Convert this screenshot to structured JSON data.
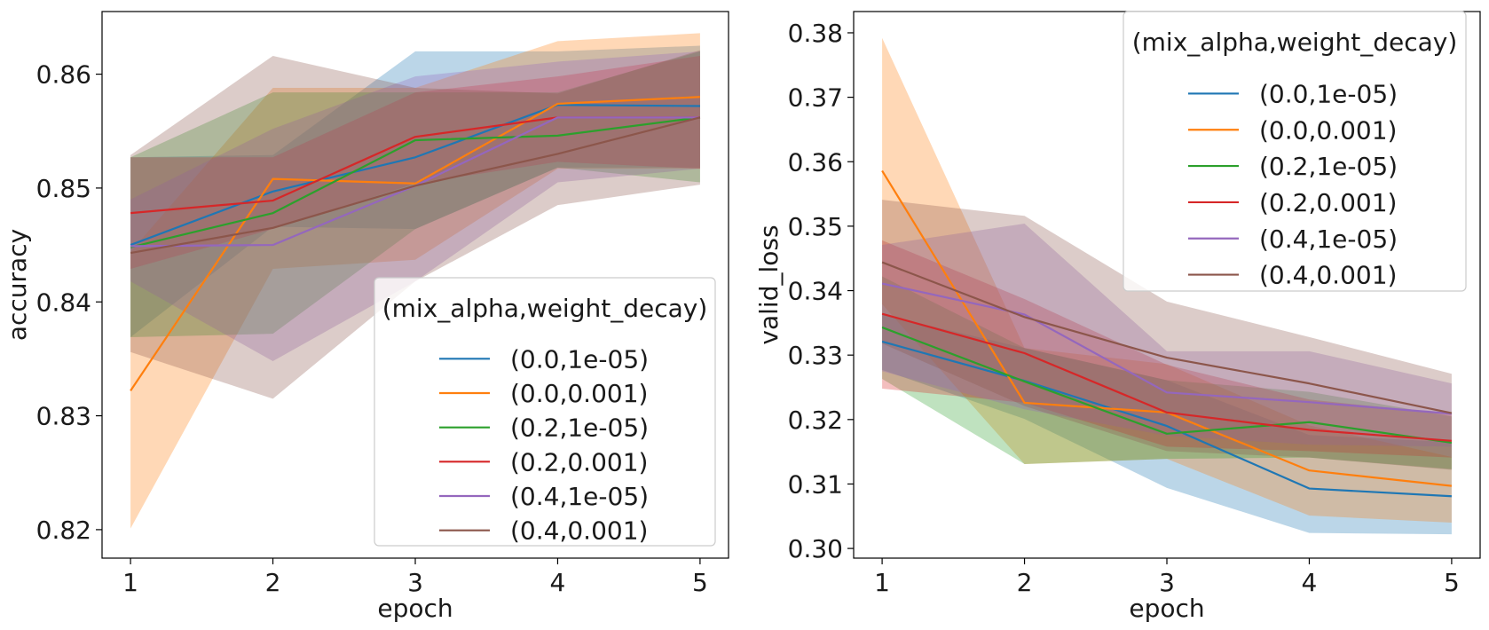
{
  "chart_data": [
    {
      "type": "line",
      "xlabel": "epoch",
      "ylabel": "accuracy",
      "x": [
        1,
        2,
        3,
        4,
        5
      ],
      "xticks": [
        1,
        2,
        3,
        4,
        5
      ],
      "xlim": [
        0.8,
        5.2
      ],
      "ylim": [
        0.8175,
        0.8655
      ],
      "yticks": [
        0.82,
        0.83,
        0.84,
        0.85,
        0.86
      ],
      "ytick_labels": [
        "0.82",
        "0.83",
        "0.84",
        "0.85",
        "0.86"
      ],
      "grid": false,
      "legend": {
        "title": "(mix_alpha,weight_decay)",
        "placement": "lower-right"
      },
      "series": [
        {
          "name": "(0.0,1e-05)",
          "color": "#1f77b4",
          "values": [
            0.845,
            0.8497,
            0.8527,
            0.8573,
            0.8572
          ],
          "lower": [
            0.8369,
            0.8466,
            0.8464,
            0.8518,
            0.8518
          ],
          "upper": [
            0.8527,
            0.8529,
            0.862,
            0.862,
            0.8625
          ]
        },
        {
          "name": "(0.0,0.001)",
          "color": "#ff7f0e",
          "values": [
            0.8322,
            0.8508,
            0.8504,
            0.8574,
            0.858
          ],
          "lower": [
            0.8201,
            0.8429,
            0.8437,
            0.8517,
            0.8517
          ],
          "upper": [
            0.8444,
            0.8588,
            0.8588,
            0.8629,
            0.8636
          ]
        },
        {
          "name": "(0.2,1e-05)",
          "color": "#2ca02c",
          "values": [
            0.8448,
            0.8478,
            0.8542,
            0.8546,
            0.8562
          ],
          "lower": [
            0.8369,
            0.8372,
            0.8464,
            0.8518,
            0.8505
          ],
          "upper": [
            0.8527,
            0.8584,
            0.8584,
            0.8584,
            0.862
          ]
        },
        {
          "name": "(0.2,0.001)",
          "color": "#d62728",
          "values": [
            0.8478,
            0.8489,
            0.8545,
            0.8562,
            0.8562
          ],
          "lower": [
            0.8429,
            0.8464,
            0.8504,
            0.8523,
            0.8517
          ],
          "upper": [
            0.8527,
            0.8527,
            0.8584,
            0.8598,
            0.8616
          ]
        },
        {
          "name": "(0.4,1e-05)",
          "color": "#9467bd",
          "values": [
            0.8449,
            0.845,
            0.8502,
            0.8562,
            0.8562
          ],
          "lower": [
            0.8418,
            0.8348,
            0.8418,
            0.8505,
            0.8517
          ],
          "upper": [
            0.849,
            0.8552,
            0.8598,
            0.8611,
            0.862
          ]
        },
        {
          "name": "(0.4,0.001)",
          "color": "#8c564b",
          "values": [
            0.8443,
            0.8465,
            0.8502,
            0.853,
            0.8562
          ],
          "lower": [
            0.8356,
            0.8315,
            0.8418,
            0.8485,
            0.8503
          ],
          "upper": [
            0.8529,
            0.8616,
            0.8588,
            0.8583,
            0.8621
          ]
        }
      ]
    },
    {
      "type": "line",
      "xlabel": "epoch",
      "ylabel": "valid_loss",
      "x": [
        1,
        2,
        3,
        4,
        5
      ],
      "xticks": [
        1,
        2,
        3,
        4,
        5
      ],
      "xlim": [
        0.8,
        5.2
      ],
      "ylim": [
        0.2985,
        0.3833
      ],
      "yticks": [
        0.3,
        0.31,
        0.32,
        0.33,
        0.34,
        0.35,
        0.36,
        0.37,
        0.38
      ],
      "ytick_labels": [
        "0.30",
        "0.31",
        "0.32",
        "0.33",
        "0.34",
        "0.35",
        "0.36",
        "0.37",
        "0.38"
      ],
      "grid": false,
      "legend": {
        "title": "(mix_alpha,weight_decay)",
        "placement": "upper-right"
      },
      "series": [
        {
          "name": "(0.0,1e-05)",
          "color": "#1f77b4",
          "values": [
            0.3321,
            0.326,
            0.319,
            0.3093,
            0.3081
          ],
          "lower": [
            0.3277,
            0.3201,
            0.3094,
            0.3024,
            0.3022
          ],
          "upper": [
            0.3363,
            0.3311,
            0.3261,
            0.3176,
            0.3165
          ]
        },
        {
          "name": "(0.0,0.001)",
          "color": "#ff7f0e",
          "values": [
            0.3586,
            0.3226,
            0.3211,
            0.3121,
            0.3097
          ],
          "lower": [
            0.3379,
            0.3131,
            0.3139,
            0.3051,
            0.304
          ],
          "upper": [
            0.3792,
            0.3311,
            0.3286,
            0.3191,
            0.3142
          ]
        },
        {
          "name": "(0.2,1e-05)",
          "color": "#2ca02c",
          "values": [
            0.3343,
            0.3259,
            0.3178,
            0.3196,
            0.3164
          ],
          "lower": [
            0.3263,
            0.3131,
            0.3139,
            0.3141,
            0.3123
          ],
          "upper": [
            0.3422,
            0.3311,
            0.3261,
            0.3243,
            0.3205
          ]
        },
        {
          "name": "(0.2,0.001)",
          "color": "#d62728",
          "values": [
            0.3364,
            0.3303,
            0.3211,
            0.3184,
            0.3167
          ],
          "lower": [
            0.3248,
            0.3226,
            0.3158,
            0.3151,
            0.3141
          ],
          "upper": [
            0.3478,
            0.3387,
            0.3285,
            0.3231,
            0.3208
          ]
        },
        {
          "name": "(0.4,1e-05)",
          "color": "#9467bd",
          "values": [
            0.3411,
            0.3363,
            0.3242,
            0.3227,
            0.3209
          ],
          "lower": [
            0.3275,
            0.3216,
            0.3175,
            0.3161,
            0.3158
          ],
          "upper": [
            0.3471,
            0.3504,
            0.3306,
            0.3306,
            0.3256
          ]
        },
        {
          "name": "(0.4,0.001)",
          "color": "#8c564b",
          "values": [
            0.3444,
            0.3359,
            0.3296,
            0.3256,
            0.321
          ],
          "lower": [
            0.3318,
            0.3221,
            0.3151,
            0.3141,
            0.3122
          ],
          "upper": [
            0.3541,
            0.3516,
            0.3383,
            0.3328,
            0.3271
          ]
        }
      ]
    }
  ]
}
